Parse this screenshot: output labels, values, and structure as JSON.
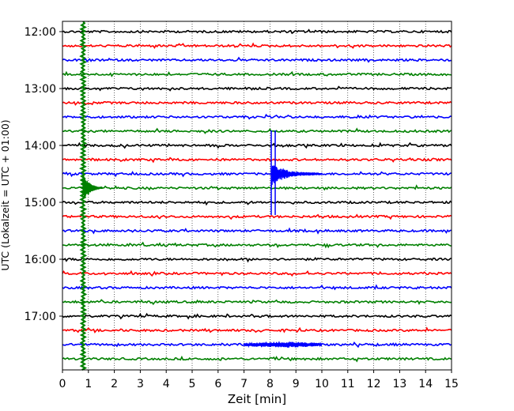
{
  "chart_data": {
    "type": "line",
    "subtype": "helicorder",
    "title": "",
    "xlabel": "Zeit  [min]",
    "ylabel": "UTC (Lokalzeit = UTC + 01:00)",
    "xlim": [
      0,
      15
    ],
    "x_ticks": [
      "0",
      "1",
      "2",
      "3",
      "4",
      "5",
      "6",
      "7",
      "8",
      "9",
      "10",
      "11",
      "12",
      "13",
      "14",
      "15"
    ],
    "y_tick_labels": [
      "12:00",
      "13:00",
      "14:00",
      "15:00",
      "16:00",
      "17:00"
    ],
    "start_time": "12:00",
    "row_interval_min": 15,
    "row_count": 24,
    "row_colors": [
      "#000000",
      "#ff0000",
      "#0000ff",
      "#008000"
    ],
    "grid": "vertical-dotted",
    "events": [
      {
        "label": "",
        "start_min": 0.8,
        "start_time": "12:00",
        "end_time": "17:45",
        "color": "#008000",
        "peak_time": "14:45"
      },
      {
        "label": "",
        "start_min": 8.05,
        "end_min": 10.0,
        "time": "14:30",
        "color": "#0000ff"
      },
      {
        "label": "",
        "start_min": 7.0,
        "end_min": 10.0,
        "time": "17:30",
        "color": "#0000ff"
      }
    ]
  }
}
